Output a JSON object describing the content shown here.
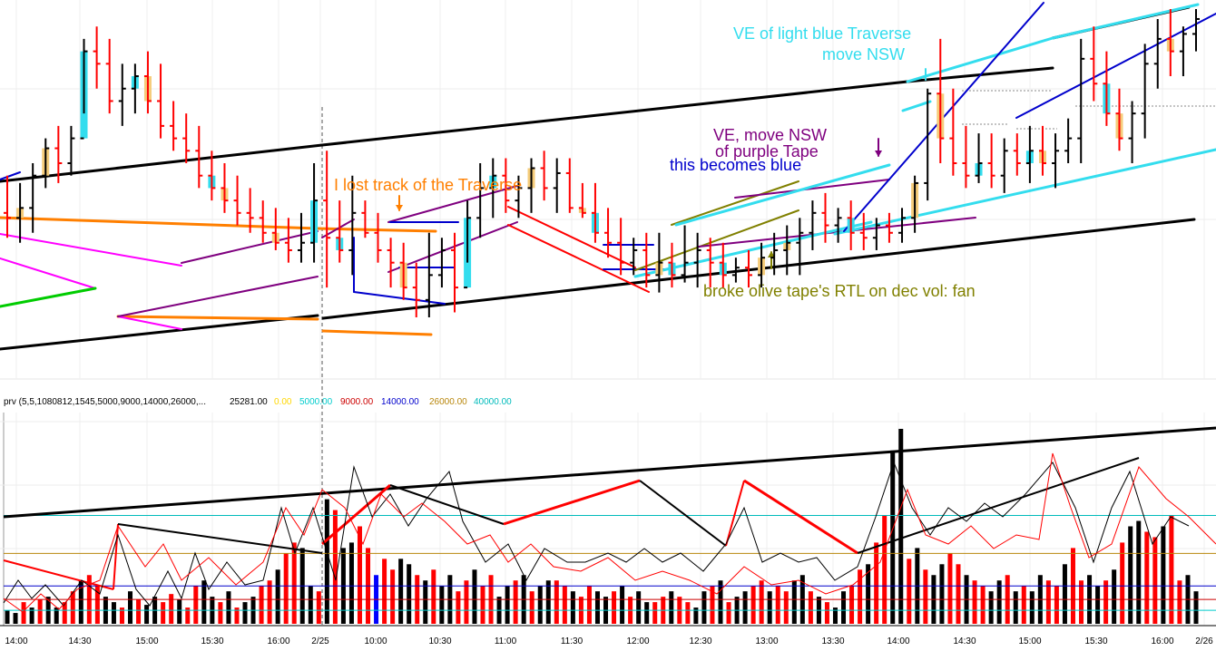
{
  "annotations": {
    "ve_light_blue_line1": "VE of light blue Traverse",
    "ve_light_blue_line2": "move NSW",
    "ve_purple_line1": "VE, move NSW",
    "ve_purple_line2": "of purple Tape",
    "becomes_blue": "this becomes blue",
    "lost_track": "I lost track of the Traverse",
    "broke_olive": "broke olive tape's RTL on dec vol: fan"
  },
  "colors": {
    "up": "#000000",
    "down": "#ff0000",
    "ib_cyan": "#33ddee",
    "ib_tan": "#f5cc7a",
    "cyan": "#33ddee",
    "orange": "#ff7f00",
    "purple": "#7f007f",
    "blue": "#0000cc",
    "olive": "#808000",
    "magenta": "#ff00ff",
    "green": "#00cc00",
    "black": "#000000",
    "red": "#ff0000"
  },
  "chart_data": [
    {
      "type": "bar",
      "name": "price",
      "x_labels": [
        "14:00",
        "14:30",
        "15:00",
        "15:30",
        "16:00",
        "2/25",
        "10:00",
        "10:30",
        "11:00",
        "11:30",
        "12:00",
        "12:30",
        "13:00",
        "13:30",
        "14:00",
        "14:30",
        "15:00",
        "15:30",
        "16:00",
        "2/26"
      ],
      "grid": true,
      "bars_ohlc": [
        [
          270,
          260,
          285,
          268
        ],
        [
          268,
          258,
          282,
          272
        ],
        [
          272,
          262,
          290,
          285
        ],
        [
          285,
          280,
          300,
          296
        ],
        [
          296,
          282,
          305,
          290
        ],
        [
          290,
          285,
          305,
          300
        ],
        [
          300,
          310,
          340,
          335
        ],
        [
          335,
          320,
          345,
          330
        ],
        [
          330,
          310,
          340,
          315
        ],
        [
          315,
          305,
          330,
          320
        ],
        [
          320,
          310,
          330,
          325
        ],
        [
          325,
          310,
          335,
          315
        ],
        [
          315,
          300,
          330,
          305
        ],
        [
          305,
          295,
          315,
          300
        ],
        [
          300,
          290,
          310,
          295
        ],
        [
          295,
          280,
          305,
          285
        ],
        [
          285,
          275,
          295,
          280
        ],
        [
          280,
          270,
          290,
          275
        ],
        [
          275,
          265,
          285,
          270
        ],
        [
          270,
          262,
          280,
          268
        ],
        [
          268,
          258,
          275,
          262
        ],
        [
          262,
          255,
          272,
          258
        ],
        [
          258,
          250,
          268,
          255
        ],
        [
          255,
          250,
          270,
          258
        ],
        [
          258,
          250,
          290,
          275
        ],
        [
          275,
          240,
          295,
          260
        ],
        [
          260,
          250,
          275,
          255
        ],
        [
          255,
          245,
          285,
          270
        ],
        [
          270,
          260,
          275,
          262
        ],
        [
          262,
          250,
          270,
          255
        ],
        [
          255,
          240,
          260,
          250
        ],
        [
          250,
          235,
          258,
          240
        ],
        [
          240,
          228,
          250,
          235
        ],
        [
          235,
          228,
          262,
          245
        ],
        [
          245,
          240,
          260,
          255
        ],
        [
          255,
          230,
          262,
          240
        ],
        [
          240,
          250,
          275,
          268
        ],
        [
          268,
          260,
          290,
          280
        ],
        [
          280,
          268,
          292,
          285
        ],
        [
          285,
          270,
          292,
          275
        ],
        [
          275,
          268,
          285,
          280
        ],
        [
          280,
          270,
          292,
          288
        ],
        [
          288,
          275,
          295,
          280
        ],
        [
          280,
          270,
          292,
          286
        ],
        [
          286,
          270,
          292,
          272
        ],
        [
          272,
          268,
          282,
          270
        ],
        [
          270,
          258,
          282,
          262
        ],
        [
          262,
          252,
          272,
          258
        ],
        [
          258,
          245,
          268,
          250
        ],
        [
          250,
          245,
          260,
          255
        ],
        [
          255,
          240,
          262,
          245
        ],
        [
          245,
          238,
          262,
          250
        ],
        [
          250,
          240,
          258,
          245
        ],
        [
          245,
          242,
          265,
          250
        ],
        [
          250,
          240,
          262,
          255
        ],
        [
          255,
          240,
          260,
          250
        ],
        [
          250,
          240,
          258,
          245
        ],
        [
          245,
          242,
          252,
          248
        ],
        [
          248,
          240,
          255,
          245
        ],
        [
          245,
          240,
          258,
          252
        ],
        [
          252,
          245,
          262,
          255
        ],
        [
          255,
          245,
          265,
          258
        ],
        [
          258,
          245,
          268,
          262
        ],
        [
          262,
          255,
          275,
          270
        ],
        [
          270,
          258,
          278,
          265
        ],
        [
          265,
          258,
          272,
          268
        ],
        [
          268,
          255,
          275,
          262
        ],
        [
          262,
          255,
          270,
          260
        ],
        [
          260,
          255,
          268,
          265
        ],
        [
          265,
          258,
          270,
          262
        ],
        [
          262,
          258,
          272,
          268
        ],
        [
          268,
          262,
          285,
          282
        ],
        [
          282,
          275,
          320,
          318
        ],
        [
          318,
          290,
          340,
          300
        ],
        [
          300,
          285,
          320,
          290
        ],
        [
          290,
          280,
          305,
          285
        ],
        [
          285,
          282,
          302,
          290
        ],
        [
          290,
          280,
          302,
          285
        ],
        [
          285,
          278,
          300,
          295
        ],
        [
          295,
          285,
          302,
          290
        ],
        [
          290,
          282,
          305,
          295
        ],
        [
          295,
          285,
          305,
          290
        ],
        [
          290,
          280,
          302,
          295
        ],
        [
          295,
          290,
          308,
          300
        ],
        [
          300,
          290,
          340,
          332
        ],
        [
          332,
          315,
          345,
          322
        ],
        [
          322,
          305,
          335,
          310
        ],
        [
          310,
          295,
          320,
          300
        ],
        [
          300,
          290,
          315,
          310
        ],
        [
          310,
          300,
          338,
          330
        ],
        [
          330,
          320,
          348,
          340
        ],
        [
          340,
          325,
          352,
          335
        ],
        [
          335,
          325,
          345,
          342
        ],
        [
          342,
          335,
          352,
          348
        ]
      ]
    },
    {
      "type": "bar",
      "name": "volume",
      "label": "prv (5,5,1080812,1545,5000,9000,14000,26000,...",
      "last_value": "25281.00",
      "levels": [
        {
          "value": "0.00",
          "color": "#ffd700"
        },
        {
          "value": "5000.00",
          "color": "#00cccc"
        },
        {
          "value": "9000.00",
          "color": "#cc0000"
        },
        {
          "value": "14000.00",
          "color": "#0000cc"
        },
        {
          "value": "26000.00",
          "color": "#b8860b"
        },
        {
          "value": "40000.00",
          "color": "#00bbbb"
        }
      ],
      "x_labels": [
        "14:00",
        "14:30",
        "15:00",
        "15:30",
        "16:00",
        "2/25",
        "10:00",
        "10:30",
        "11:00",
        "11:30",
        "12:00",
        "12:30",
        "13:00",
        "13:30",
        "14:00",
        "14:30",
        "15:00",
        "15:30",
        "16:00",
        "2/26"
      ],
      "values": [
        5000,
        4000,
        8000,
        6000,
        9000,
        10000,
        6000,
        8000,
        12000,
        16000,
        18000,
        14000,
        10000,
        8000,
        6000,
        12000,
        9000,
        7000,
        10000,
        8000,
        11000,
        9000,
        6000,
        14000,
        16000,
        10000,
        8000,
        12000,
        6000,
        8000,
        10000,
        14000,
        16000,
        20000,
        26000,
        30000,
        28000,
        14000,
        12000,
        46000,
        42000,
        28000,
        30000,
        36000,
        28000,
        18000,
        24000,
        20000,
        24000,
        22000,
        18000,
        16000,
        20000,
        14000,
        18000,
        12000,
        16000,
        20000,
        14000,
        18000,
        10000,
        14000,
        16000,
        18000,
        12000,
        14000,
        16000,
        16000,
        14000,
        12000,
        10000,
        14000,
        12000,
        10000,
        12000,
        14000,
        10000,
        12000,
        8000,
        8000,
        10000,
        12000,
        10000,
        8000,
        6000,
        12000,
        14000,
        16000,
        8000,
        10000,
        12000,
        14000,
        16000,
        12000,
        14000,
        12000,
        16000,
        18000,
        12000,
        10000,
        8000,
        6000,
        12000,
        14000,
        20000,
        22000,
        30000,
        40000,
        64000,
        72000,
        24000,
        28000,
        20000,
        18000,
        22000,
        26000,
        22000,
        18000,
        16000,
        14000,
        12000,
        16000,
        18000,
        12000,
        14000,
        12000,
        18000,
        16000,
        14000,
        22000,
        28000,
        16000,
        18000,
        14000,
        16000,
        20000,
        30000,
        36000,
        38000,
        34000,
        32000,
        36000,
        40000,
        16000,
        18000,
        12000
      ]
    }
  ]
}
